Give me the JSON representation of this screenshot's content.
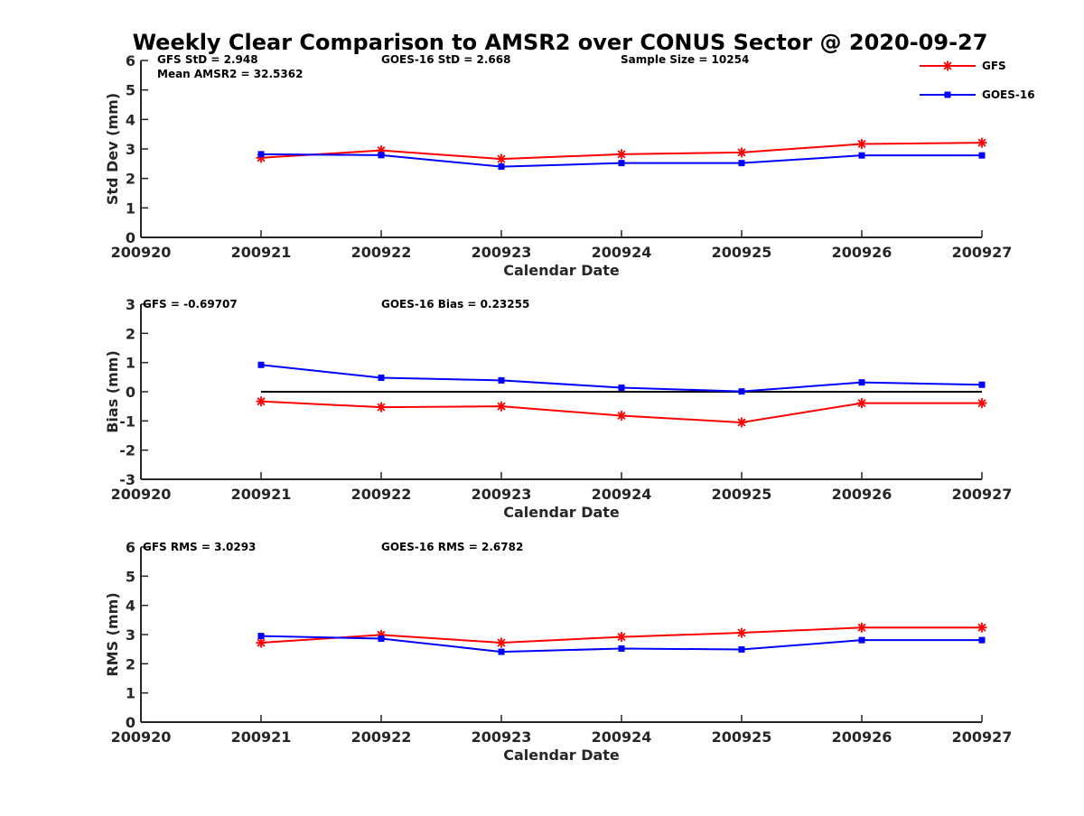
{
  "chart_data": [
    {
      "type": "line",
      "title": "Weekly Clear Comparison to AMSR2 over CONUS Sector @ 2020-09-27",
      "xlabel": "Calendar Date",
      "ylabel": "Std Dev (mm)",
      "x": [
        "200920",
        "200921",
        "200922",
        "200923",
        "200924",
        "200925",
        "200926",
        "200927"
      ],
      "xlim": [
        "200920",
        "200927"
      ],
      "ylim": [
        0,
        6
      ],
      "yticks": [
        "0",
        "1",
        "2",
        "3",
        "4",
        "5",
        "6"
      ],
      "grid": false,
      "legend": "top-right",
      "series": [
        {
          "name": "GFS",
          "color": "#ff0000",
          "marker": "asterisk",
          "x": [
            "200921",
            "200922",
            "200923",
            "200924",
            "200925",
            "200926",
            "200927"
          ],
          "values": [
            2.7,
            2.95,
            2.66,
            2.82,
            2.88,
            3.17,
            3.21
          ]
        },
        {
          "name": "GOES-16",
          "color": "#0000ff",
          "marker": "square",
          "x": [
            "200921",
            "200922",
            "200923",
            "200924",
            "200925",
            "200926",
            "200927"
          ],
          "values": [
            2.82,
            2.79,
            2.4,
            2.52,
            2.52,
            2.78,
            2.78
          ]
        }
      ],
      "annotations": [
        "GFS StD = 2.948",
        "GOES-16 StD = 2.668",
        "Sample Size = 10254",
        "Mean AMSR2 = 32.5362"
      ]
    },
    {
      "type": "line",
      "xlabel": "Calendar Date",
      "ylabel": "Bias (mm)",
      "x": [
        "200920",
        "200921",
        "200922",
        "200923",
        "200924",
        "200925",
        "200926",
        "200927"
      ],
      "xlim": [
        "200920",
        "200927"
      ],
      "ylim": [
        -3,
        3
      ],
      "yticks": [
        "-3",
        "-2",
        "-1",
        "0",
        "1",
        "2",
        "3"
      ],
      "grid": false,
      "reference_line": 0,
      "series": [
        {
          "name": "GFS",
          "color": "#ff0000",
          "marker": "asterisk",
          "x": [
            "200921",
            "200922",
            "200923",
            "200924",
            "200925",
            "200926",
            "200927"
          ],
          "values": [
            -0.33,
            -0.53,
            -0.5,
            -0.82,
            -1.05,
            -0.39,
            -0.39
          ]
        },
        {
          "name": "GOES-16",
          "color": "#0000ff",
          "marker": "square",
          "x": [
            "200921",
            "200922",
            "200923",
            "200924",
            "200925",
            "200926",
            "200927"
          ],
          "values": [
            0.92,
            0.48,
            0.39,
            0.14,
            0.01,
            0.32,
            0.24
          ]
        }
      ],
      "annotations": [
        "GFS = -0.69707",
        "GOES-16 Bias  = 0.23255"
      ]
    },
    {
      "type": "line",
      "xlabel": "Calendar Date",
      "ylabel": "RMS (mm)",
      "x": [
        "200920",
        "200921",
        "200922",
        "200923",
        "200924",
        "200925",
        "200926",
        "200927"
      ],
      "xlim": [
        "200920",
        "200927"
      ],
      "ylim": [
        0,
        6
      ],
      "yticks": [
        "0",
        "1",
        "2",
        "3",
        "4",
        "5",
        "6"
      ],
      "grid": false,
      "series": [
        {
          "name": "GFS",
          "color": "#ff0000",
          "marker": "asterisk",
          "x": [
            "200921",
            "200922",
            "200923",
            "200924",
            "200925",
            "200926",
            "200927"
          ],
          "values": [
            2.72,
            2.99,
            2.72,
            2.92,
            3.06,
            3.24,
            3.24
          ]
        },
        {
          "name": "GOES-16",
          "color": "#0000ff",
          "marker": "square",
          "x": [
            "200921",
            "200922",
            "200923",
            "200924",
            "200925",
            "200926",
            "200927"
          ],
          "values": [
            2.95,
            2.86,
            2.41,
            2.52,
            2.49,
            2.81,
            2.81
          ]
        }
      ],
      "annotations": [
        "GFS RMS = 3.0293",
        "GOES-16 RMS = 2.6782"
      ]
    }
  ],
  "colors": {
    "axis": "#262626",
    "zero_line": "#000000"
  }
}
